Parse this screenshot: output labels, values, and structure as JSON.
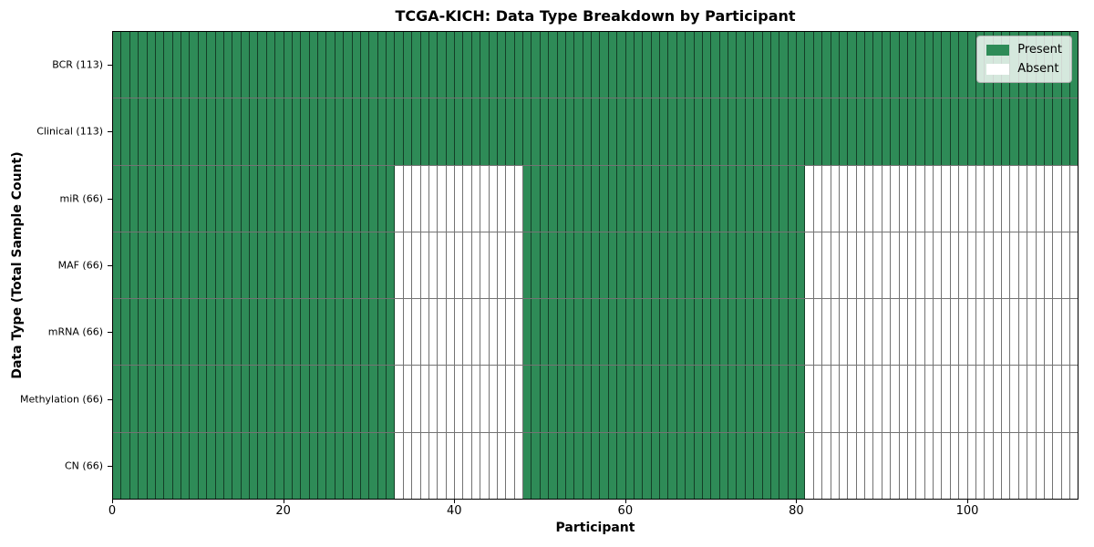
{
  "chart_data": {
    "type": "heatmap",
    "title": "TCGA-KICH: Data Type Breakdown by Participant",
    "xlabel": "Participant",
    "ylabel": "Data Type (Total Sample Count)",
    "n_participants": 113,
    "xlim": [
      0,
      113
    ],
    "x_ticks": [
      0,
      20,
      40,
      60,
      80,
      100
    ],
    "grid": true,
    "colors": {
      "present": "#2e8b57",
      "absent": "#ffffff",
      "gridline": "rgba(0, 0, 0, 0.55)"
    },
    "legend": {
      "position": "upper right",
      "entries": [
        {
          "label": "Present",
          "color": "#2e8b57"
        },
        {
          "label": "Absent",
          "color": "#ffffff"
        }
      ]
    },
    "rows": [
      {
        "label": "BCR (113)",
        "present_count": 113,
        "present_ranges": [
          [
            0,
            113
          ]
        ]
      },
      {
        "label": "Clinical (113)",
        "present_count": 113,
        "present_ranges": [
          [
            0,
            113
          ]
        ]
      },
      {
        "label": "miR (66)",
        "present_count": 66,
        "present_ranges": [
          [
            0,
            33
          ],
          [
            48,
            81
          ]
        ]
      },
      {
        "label": "MAF (66)",
        "present_count": 66,
        "present_ranges": [
          [
            0,
            33
          ],
          [
            48,
            81
          ]
        ]
      },
      {
        "label": "mRNA (66)",
        "present_count": 66,
        "present_ranges": [
          [
            0,
            33
          ],
          [
            48,
            81
          ]
        ]
      },
      {
        "label": "Methylation (66)",
        "present_count": 66,
        "present_ranges": [
          [
            0,
            33
          ],
          [
            48,
            81
          ]
        ]
      },
      {
        "label": "CN (66)",
        "present_count": 66,
        "present_ranges": [
          [
            0,
            33
          ],
          [
            48,
            81
          ]
        ]
      }
    ]
  }
}
